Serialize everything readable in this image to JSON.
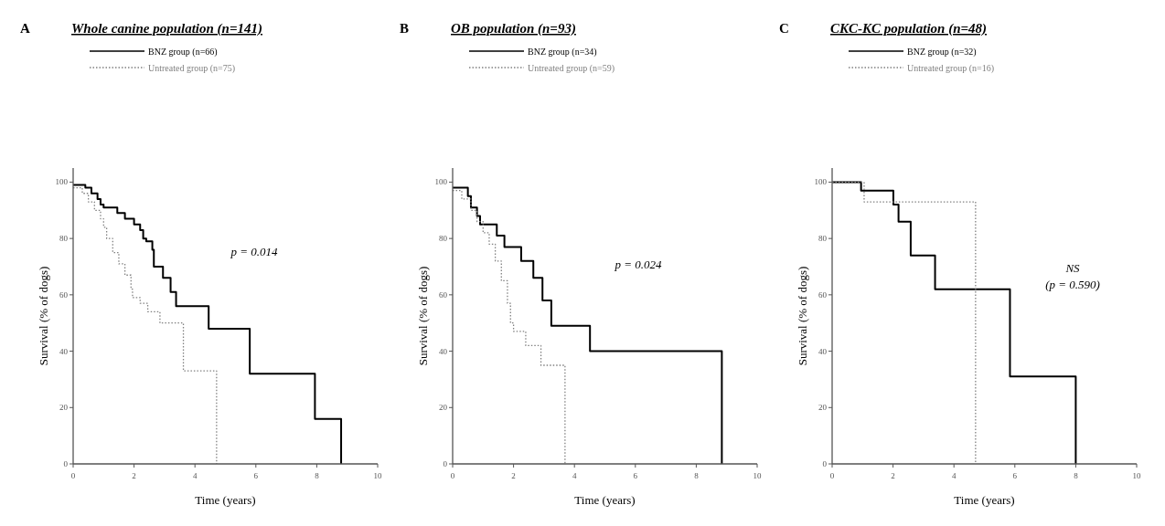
{
  "chart_data": [
    {
      "type": "step",
      "title": "Whole canine population (n=141)",
      "xlabel": "Time (years)",
      "ylabel": "Survival (% of dogs)",
      "annotations": [
        "A",
        "p = 0.014"
      ],
      "xlim": [
        0,
        10
      ],
      "xticks": [
        0,
        2,
        4,
        6,
        8,
        10
      ],
      "ylim": [
        0,
        105
      ],
      "yticks": [
        0,
        20,
        40,
        60,
        80,
        100
      ],
      "legend": "top",
      "series": [
        {
          "name": "BNZ group (n=66)",
          "color": "#000000",
          "line_style": "solid",
          "x": [
            0,
            0.4,
            0.6,
            0.8,
            0.9,
            1.0,
            1.45,
            1.7,
            2.0,
            2.2,
            2.3,
            2.4,
            2.6,
            2.65,
            2.95,
            3.2,
            3.38,
            4.45,
            5.8,
            7.94,
            8.8
          ],
          "values": [
            99,
            98,
            96,
            94,
            92,
            91,
            89,
            87,
            85,
            83,
            80,
            79,
            76,
            70,
            66,
            61,
            56,
            48,
            32,
            16,
            0
          ]
        },
        {
          "name": "Untreated group (n=75)",
          "color": "#808080",
          "line_style": "dotted",
          "x": [
            0,
            0.3,
            0.5,
            0.7,
            0.9,
            1.0,
            1.1,
            1.3,
            1.5,
            1.7,
            1.9,
            1.95,
            2.2,
            2.45,
            2.85,
            3.62,
            4.71
          ],
          "values": [
            98,
            96,
            93,
            90,
            87,
            84,
            80,
            75,
            71,
            67,
            62,
            59,
            57,
            54,
            50,
            33,
            0
          ]
        }
      ]
    },
    {
      "type": "step",
      "title": "OB population (n=93)",
      "xlabel": "Time (years)",
      "ylabel": "Survival (% of dogs)",
      "annotations": [
        "B",
        "p = 0.024"
      ],
      "xlim": [
        0,
        10
      ],
      "xticks": [
        0,
        2,
        4,
        6,
        8,
        10
      ],
      "ylim": [
        0,
        105
      ],
      "yticks": [
        0,
        20,
        40,
        60,
        80,
        100
      ],
      "legend": "top",
      "series": [
        {
          "name": "BNZ group (n=34)",
          "color": "#000000",
          "line_style": "solid",
          "x": [
            0,
            0.5,
            0.6,
            0.8,
            0.9,
            1.45,
            1.7,
            2.25,
            2.65,
            2.95,
            3.24,
            4.51,
            8.84
          ],
          "values": [
            98,
            95,
            91,
            88,
            85,
            81,
            77,
            72,
            66,
            58,
            49,
            40,
            0
          ]
        },
        {
          "name": "Untreated group (n=59)",
          "color": "#808080",
          "line_style": "dotted",
          "x": [
            0,
            0.3,
            0.6,
            0.8,
            1.0,
            1.2,
            1.4,
            1.6,
            1.8,
            1.9,
            2.0,
            2.4,
            2.9,
            3.69
          ],
          "values": [
            97,
            94,
            90,
            86,
            82,
            78,
            72,
            65,
            57,
            50,
            47,
            42,
            35,
            0
          ]
        }
      ]
    },
    {
      "type": "step",
      "title": "CKC-KC population (n=48)",
      "xlabel": "Time (years)",
      "ylabel": "Survival (% of dogs)",
      "annotations": [
        "C",
        "NS",
        "(p = 0.590)"
      ],
      "xlim": [
        0,
        10
      ],
      "xticks": [
        0,
        2,
        4,
        6,
        8,
        10
      ],
      "ylim": [
        0,
        105
      ],
      "yticks": [
        0,
        20,
        40,
        60,
        80,
        100
      ],
      "legend": "top",
      "series": [
        {
          "name": "BNZ group (n=32)",
          "color": "#000000",
          "line_style": "solid",
          "x": [
            0,
            0.95,
            2.01,
            2.18,
            2.58,
            3.38,
            5.84,
            8.0
          ],
          "values": [
            100,
            97,
            92,
            86,
            74,
            62,
            31,
            0
          ]
        },
        {
          "name": "Untreated group (n=16)",
          "color": "#808080",
          "line_style": "dotted",
          "x": [
            0,
            1.05,
            4.71
          ],
          "values": [
            100,
            93,
            0
          ]
        }
      ]
    }
  ]
}
